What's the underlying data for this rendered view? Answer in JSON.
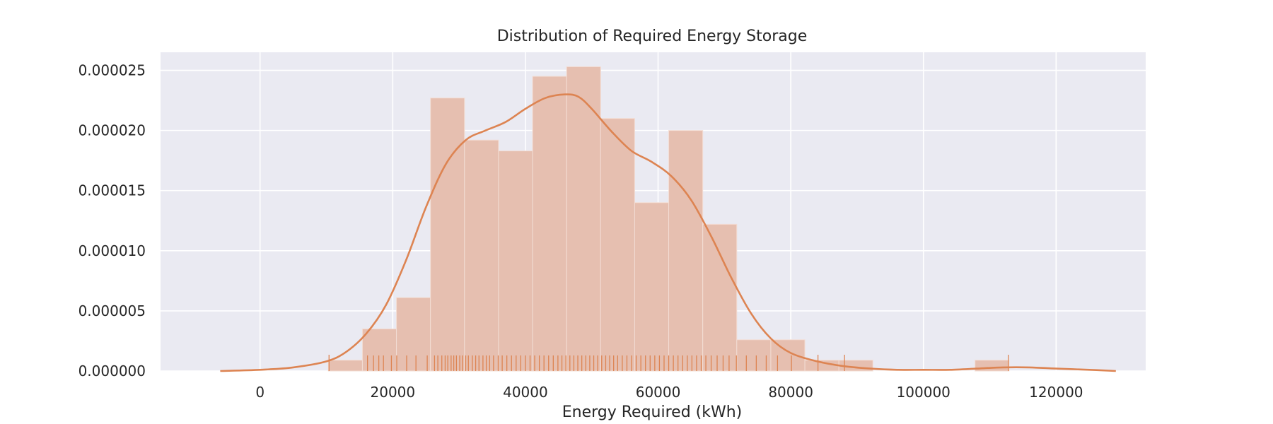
{
  "chart_data": {
    "type": "histogram",
    "title": "Distribution of Required Energy Storage",
    "xlabel": "Energy Required (kWh)",
    "ylabel": "",
    "xlim": [
      -15000,
      133500
    ],
    "ylim": [
      0,
      2.65e-05
    ],
    "x_ticks": [
      0,
      20000,
      40000,
      60000,
      80000,
      100000,
      120000
    ],
    "x_tick_labels": [
      "0",
      "20000",
      "40000",
      "60000",
      "80000",
      "100000",
      "120000"
    ],
    "y_ticks": [
      0,
      5e-06,
      1e-05,
      1.5e-05,
      2e-05,
      2.5e-05
    ],
    "y_tick_labels": [
      "0.000000",
      "0.000005",
      "0.000010",
      "0.000015",
      "0.000020",
      "0.000025"
    ],
    "grid": true,
    "background_color": "#eaeaf2",
    "bar_color": "#e6bfb0",
    "line_color": "#dd8452",
    "bins": [
      {
        "x0": 10300,
        "x1": 15430,
        "density": 9e-07
      },
      {
        "x0": 15430,
        "x1": 20560,
        "density": 3.5e-06
      },
      {
        "x0": 20560,
        "x1": 25690,
        "density": 6.1e-06
      },
      {
        "x0": 25690,
        "x1": 30820,
        "density": 2.27e-05
      },
      {
        "x0": 30820,
        "x1": 35950,
        "density": 1.92e-05
      },
      {
        "x0": 35950,
        "x1": 41080,
        "density": 1.83e-05
      },
      {
        "x0": 41080,
        "x1": 46210,
        "density": 2.45e-05
      },
      {
        "x0": 46210,
        "x1": 51340,
        "density": 2.53e-05
      },
      {
        "x0": 51340,
        "x1": 56470,
        "density": 2.1e-05
      },
      {
        "x0": 56470,
        "x1": 61600,
        "density": 1.4e-05
      },
      {
        "x0": 61600,
        "x1": 66730,
        "density": 2e-05
      },
      {
        "x0": 66730,
        "x1": 71860,
        "density": 1.22e-05
      },
      {
        "x0": 71860,
        "x1": 76990,
        "density": 2.6e-06
      },
      {
        "x0": 76990,
        "x1": 82120,
        "density": 2.6e-06
      },
      {
        "x0": 82120,
        "x1": 87250,
        "density": 9e-07
      },
      {
        "x0": 87250,
        "x1": 92380,
        "density": 9e-07
      },
      {
        "x0": 92380,
        "x1": 97510,
        "density": 0
      },
      {
        "x0": 97510,
        "x1": 102640,
        "density": 0
      },
      {
        "x0": 102640,
        "x1": 107770,
        "density": 0
      },
      {
        "x0": 107770,
        "x1": 112900,
        "density": 9e-07
      }
    ],
    "kde": {
      "x": [
        -6000,
        0,
        5000,
        10000,
        13000,
        16000,
        19000,
        22000,
        25000,
        28000,
        31000,
        34000,
        37000,
        40000,
        43000,
        46000,
        48000,
        50000,
        53000,
        56000,
        59000,
        62000,
        65000,
        68000,
        71000,
        74000,
        77000,
        80000,
        84000,
        88000,
        92000,
        96000,
        100000,
        104000,
        108000,
        112000,
        116000,
        120000,
        125000,
        129000
      ],
      "y": [
        0,
        1e-07,
        3e-07,
        8e-07,
        1.6e-06,
        3.1e-06,
        5.5e-06,
        9.2e-06,
        1.36e-05,
        1.72e-05,
        1.92e-05,
        2e-05,
        2.07e-05,
        2.18e-05,
        2.27e-05,
        2.3e-05,
        2.28e-05,
        2.18e-05,
        1.99e-05,
        1.83e-05,
        1.74e-05,
        1.62e-05,
        1.42e-05,
        1.12e-05,
        7.8e-06,
        4.8e-06,
        2.7e-06,
        1.5e-06,
        8e-07,
        4e-07,
        2e-07,
        1e-07,
        1e-07,
        1e-07,
        2e-07,
        3e-07,
        3e-07,
        2e-07,
        1e-07,
        0
      ]
    },
    "rug": [
      10400,
      16200,
      17100,
      17900,
      18600,
      19800,
      20600,
      22100,
      23500,
      25200,
      26300,
      26800,
      27400,
      27900,
      28300,
      28800,
      29200,
      29600,
      30100,
      30500,
      31000,
      31400,
      32000,
      32500,
      33000,
      33600,
      34100,
      34600,
      35200,
      35900,
      36500,
      37200,
      37900,
      38600,
      39300,
      40000,
      40700,
      41400,
      42100,
      42800,
      43500,
      44200,
      44900,
      45500,
      46100,
      46700,
      47300,
      47900,
      48500,
      49100,
      49700,
      50300,
      50900,
      51500,
      52100,
      52700,
      53300,
      53900,
      54600,
      55300,
      56000,
      56700,
      57400,
      58100,
      58800,
      59500,
      60200,
      60900,
      61600,
      62300,
      63000,
      63700,
      64400,
      65100,
      65800,
      66500,
      67200,
      68000,
      68900,
      69800,
      70700,
      71800,
      73300,
      74800,
      76300,
      78000,
      80100,
      84100,
      88100,
      112800
    ]
  }
}
